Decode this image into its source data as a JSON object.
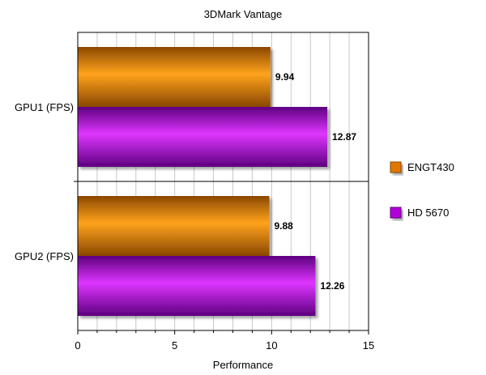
{
  "chart_data": {
    "type": "bar",
    "orientation": "horizontal",
    "title": "3DMark Vantage",
    "xlabel": "Performance",
    "ylabel": "",
    "xlim": [
      0,
      15
    ],
    "x_ticks": [
      0,
      5,
      10,
      15
    ],
    "x_minor_step": 1,
    "grid": true,
    "legend_position": "right",
    "categories": [
      "GPU1 (FPS)",
      "GPU2 (FPS)"
    ],
    "series": [
      {
        "name": "ENGT430",
        "values": [
          9.94,
          9.88
        ],
        "color": "#e07800",
        "light": "#ffa31c",
        "dark": "#8a4700"
      },
      {
        "name": "HD 5670",
        "values": [
          12.87,
          12.26
        ],
        "color": "#b000d8",
        "light": "#de36ff",
        "dark": "#5e0080"
      }
    ],
    "data_labels": [
      [
        "9.94",
        "9.88"
      ],
      [
        "12.87",
        "12.26"
      ]
    ]
  }
}
